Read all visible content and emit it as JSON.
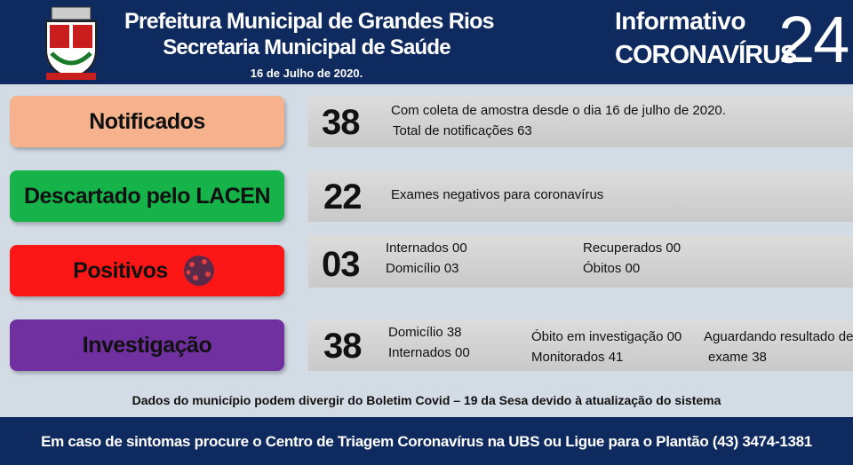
{
  "header": {
    "title": "Prefeitura Municipal de Grandes Rios",
    "subtitle": "Secretaria Municipal de Saúde",
    "date": "16 de Julho de 2020.",
    "label": "Informativo",
    "topic": "CORONAVÍRUS",
    "number": "24"
  },
  "rows": [
    {
      "label": "Notificados",
      "count": "38",
      "details": [
        "Com coleta de amostra desde o dia 16 de julho de 2020.",
        "Total de notificações 63"
      ]
    },
    {
      "label": "Descartado pelo LACEN",
      "count": "22",
      "details": [
        "Exames negativos para coronavírus"
      ]
    },
    {
      "label": "Positivos",
      "count": "03",
      "details": [
        "Internados 00",
        "Domicílio 03",
        "Recuperados 00",
        "Óbitos 00"
      ]
    },
    {
      "label": "Investigação",
      "count": "38",
      "details": [
        "Domicílio 38",
        "Internados 00",
        "Óbito em investigação 00",
        "Monitorados 41",
        "Aguardando resultado de",
        "exame 38"
      ]
    }
  ],
  "note": "Dados do município podem divergir do Boletim Covid – 19 da Sesa devido à atualização do sistema",
  "footer": "Em caso de sintomas procure o Centro de Triagem Coronavírus na UBS ou Ligue para o Plantão (43) 3474-1381"
}
